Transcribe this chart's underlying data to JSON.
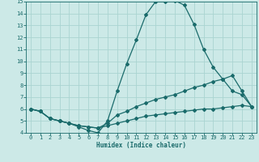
{
  "xlabel": "Humidex (Indice chaleur)",
  "xlim": [
    -0.5,
    23.5
  ],
  "ylim": [
    4,
    15
  ],
  "xticks": [
    0,
    1,
    2,
    3,
    4,
    5,
    6,
    7,
    8,
    9,
    10,
    11,
    12,
    13,
    14,
    15,
    16,
    17,
    18,
    19,
    20,
    21,
    22,
    23
  ],
  "yticks": [
    4,
    5,
    6,
    7,
    8,
    9,
    10,
    11,
    12,
    13,
    14,
    15
  ],
  "bg_color": "#cce9e7",
  "grid_color": "#aad4d1",
  "line_color": "#1a6b6b",
  "line1_x": [
    0,
    1,
    2,
    3,
    4,
    5,
    6,
    7,
    8,
    9,
    10,
    11,
    12,
    13,
    14,
    15,
    16,
    17,
    18,
    19,
    20,
    21,
    22,
    23
  ],
  "line1_y": [
    6.0,
    5.8,
    5.2,
    5.0,
    4.8,
    4.5,
    4.2,
    4.0,
    5.0,
    7.5,
    9.8,
    11.8,
    13.9,
    15.0,
    15.0,
    15.1,
    14.7,
    13.1,
    11.0,
    9.5,
    8.5,
    7.5,
    7.2,
    6.2
  ],
  "line2_x": [
    0,
    1,
    2,
    3,
    4,
    5,
    6,
    7,
    8,
    9,
    10,
    11,
    12,
    13,
    14,
    15,
    16,
    17,
    18,
    19,
    20,
    21,
    22,
    23
  ],
  "line2_y": [
    6.0,
    5.8,
    5.2,
    5.0,
    4.8,
    4.6,
    4.5,
    4.4,
    4.8,
    5.5,
    5.8,
    6.2,
    6.5,
    6.8,
    7.0,
    7.2,
    7.5,
    7.8,
    8.0,
    8.3,
    8.5,
    8.8,
    7.5,
    6.2
  ],
  "line3_x": [
    0,
    1,
    2,
    3,
    4,
    5,
    6,
    7,
    8,
    9,
    10,
    11,
    12,
    13,
    14,
    15,
    16,
    17,
    18,
    19,
    20,
    21,
    22,
    23
  ],
  "line3_y": [
    6.0,
    5.8,
    5.2,
    5.0,
    4.8,
    4.6,
    4.5,
    4.4,
    4.6,
    4.8,
    5.0,
    5.2,
    5.4,
    5.5,
    5.6,
    5.7,
    5.8,
    5.9,
    6.0,
    6.0,
    6.1,
    6.2,
    6.3,
    6.2
  ],
  "marker": "D",
  "markersize": 2.0,
  "linewidth": 0.9,
  "tick_fontsize": 5.0,
  "xlabel_fontsize": 5.5
}
